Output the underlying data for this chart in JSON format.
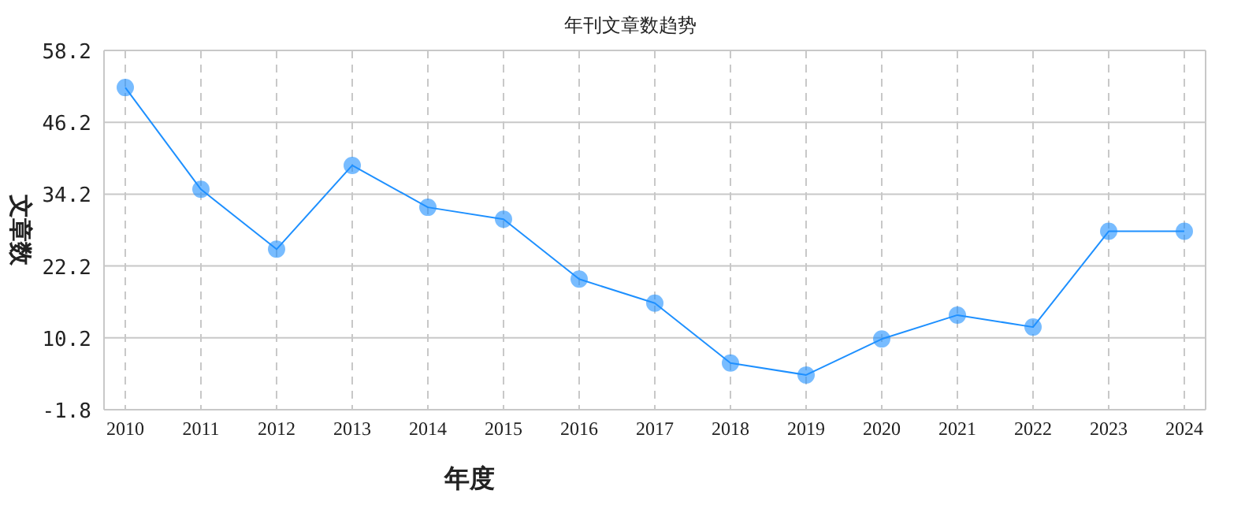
{
  "chart_data": {
    "type": "line",
    "title": "年刊文章数趋势",
    "xlabel": "年度",
    "ylabel": "文章数",
    "categories": [
      "2010",
      "2011",
      "2012",
      "2013",
      "2014",
      "2015",
      "2016",
      "2017",
      "2018",
      "2019",
      "2020",
      "2021",
      "2022",
      "2023",
      "2024"
    ],
    "series": [
      {
        "color": "#1e90ff",
        "values": [
          52,
          35,
          25,
          39,
          32,
          30,
          20,
          16,
          6,
          4,
          10,
          14,
          12,
          28,
          28
        ]
      }
    ],
    "ylim": [
      -1.8,
      58.2
    ],
    "yticks": [
      -1.8,
      10.2,
      22.2,
      34.2,
      46.2,
      58.2
    ],
    "grid": true,
    "marker": "circle",
    "line_style": "solid"
  }
}
